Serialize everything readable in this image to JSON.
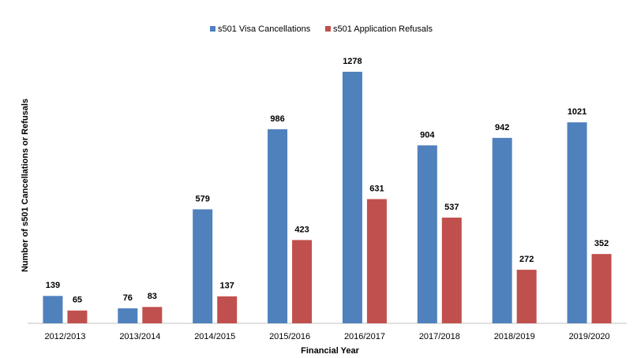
{
  "chart_data": {
    "type": "bar",
    "x_label": "Financial Year",
    "y_label": "Number of s501 Cancellations or Refusals",
    "categories": [
      "2012/2013",
      "2013/2014",
      "2014/2015",
      "2015/2016",
      "2016/2017",
      "2017/2018",
      "2018/2019",
      "2019/2020"
    ],
    "series": [
      {
        "name": "s501 Visa Cancellations",
        "color": "#4f81bd",
        "values": [
          139,
          76,
          579,
          986,
          1278,
          904,
          942,
          1021
        ]
      },
      {
        "name": "s501 Application Refusals",
        "color": "#c0504d",
        "values": [
          65,
          83,
          137,
          423,
          631,
          537,
          272,
          352
        ]
      }
    ],
    "ylim": [
      0,
      1300
    ],
    "legend": "top",
    "grid": false
  }
}
